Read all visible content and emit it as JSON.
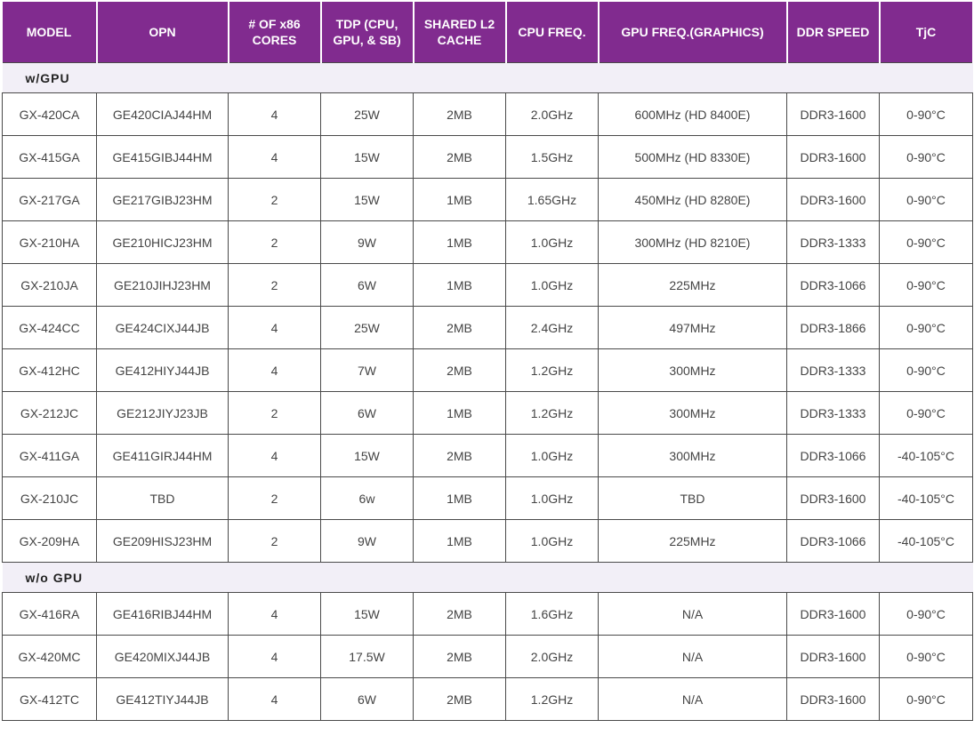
{
  "headers": [
    "MODEL",
    "OPN",
    "# OF x86 CORES",
    "TDP (CPU, GPU, & SB)",
    "SHARED L2 CACHE",
    "CPU FREQ.",
    "GPU FREQ.(GRAPHICS)",
    "DDR SPEED",
    "TjC"
  ],
  "sections": [
    {
      "label": "w/GPU",
      "rows": [
        [
          "GX-420CA",
          "GE420CIAJ44HM",
          "4",
          "25W",
          "2MB",
          "2.0GHz",
          "600MHz (HD 8400E)",
          "DDR3-1600",
          "0-90°C"
        ],
        [
          "GX-415GA",
          "GE415GIBJ44HM",
          "4",
          "15W",
          "2MB",
          "1.5GHz",
          "500MHz (HD 8330E)",
          "DDR3-1600",
          "0-90°C"
        ],
        [
          "GX-217GA",
          "GE217GIBJ23HM",
          "2",
          "15W",
          "1MB",
          "1.65GHz",
          "450MHz (HD 8280E)",
          "DDR3-1600",
          "0-90°C"
        ],
        [
          "GX-210HA",
          "GE210HICJ23HM",
          "2",
          "9W",
          "1MB",
          "1.0GHz",
          "300MHz (HD 8210E)",
          "DDR3-1333",
          "0-90°C"
        ],
        [
          "GX-210JA",
          "GE210JIHJ23HM",
          "2",
          "6W",
          "1MB",
          "1.0GHz",
          "225MHz",
          "DDR3-1066",
          "0-90°C"
        ],
        [
          "GX-424CC",
          "GE424CIXJ44JB",
          "4",
          "25W",
          "2MB",
          "2.4GHz",
          "497MHz",
          "DDR3-1866",
          "0-90°C"
        ],
        [
          "GX-412HC",
          "GE412HIYJ44JB",
          "4",
          "7W",
          "2MB",
          "1.2GHz",
          "300MHz",
          "DDR3-1333",
          "0-90°C"
        ],
        [
          "GX-212JC",
          "GE212JIYJ23JB",
          "2",
          "6W",
          "1MB",
          "1.2GHz",
          "300MHz",
          "DDR3-1333",
          "0-90°C"
        ],
        [
          "GX-411GA",
          "GE411GIRJ44HM",
          "4",
          "15W",
          "2MB",
          "1.0GHz",
          "300MHz",
          "DDR3-1066",
          "-40-105°C"
        ],
        [
          "GX-210JC",
          "TBD",
          "2",
          "6w",
          "1MB",
          "1.0GHz",
          "TBD",
          "DDR3-1600",
          "-40-105°C"
        ],
        [
          "GX-209HA",
          "GE209HISJ23HM",
          "2",
          "9W",
          "1MB",
          "1.0GHz",
          "225MHz",
          "DDR3-1066",
          "-40-105°C"
        ]
      ]
    },
    {
      "label": "w/o GPU",
      "rows": [
        [
          "GX-416RA",
          "GE416RIBJ44HM",
          "4",
          "15W",
          "2MB",
          "1.6GHz",
          "N/A",
          "DDR3-1600",
          "0-90°C"
        ],
        [
          "GX-420MC",
          "GE420MIXJ44JB",
          "4",
          "17.5W",
          "2MB",
          "2.0GHz",
          "N/A",
          "DDR3-1600",
          "0-90°C"
        ],
        [
          "GX-412TC",
          "GE412TIYJ44JB",
          "4",
          "6W",
          "2MB",
          "1.2GHz",
          "N/A",
          "DDR3-1600",
          "0-90°C"
        ]
      ]
    }
  ]
}
